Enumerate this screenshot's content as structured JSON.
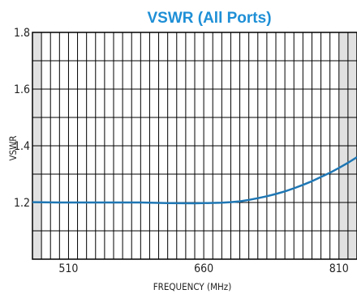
{
  "chart_data": {
    "type": "line",
    "title": "VSWR (All Ports)",
    "xlabel": "FREQUENCY (MHz)",
    "ylabel": "VSWR",
    "xlim": [
      470,
      830
    ],
    "ylim": [
      1.0,
      1.8
    ],
    "xticks": [
      510,
      660,
      810
    ],
    "yticks": [
      1.2,
      1.4,
      1.6,
      1.8
    ],
    "ytick_labels": [
      "1.2",
      "1.4",
      "1.6",
      "1.8"
    ],
    "grid": true,
    "shaded_bands": [
      [
        470,
        480
      ],
      [
        810,
        830
      ]
    ],
    "series": [
      {
        "color": "#1f77b4",
        "x": [
          470,
          500,
          530,
          560,
          590,
          620,
          650,
          680,
          690,
          700,
          710,
          720,
          730,
          740,
          750,
          760,
          770,
          780,
          790,
          800,
          810,
          820,
          830
        ],
        "y": [
          1.201,
          1.2,
          1.2,
          1.2,
          1.2,
          1.198,
          1.197,
          1.199,
          1.201,
          1.204,
          1.209,
          1.215,
          1.222,
          1.23,
          1.239,
          1.25,
          1.262,
          1.275,
          1.29,
          1.305,
          1.322,
          1.34,
          1.36
        ]
      }
    ]
  }
}
